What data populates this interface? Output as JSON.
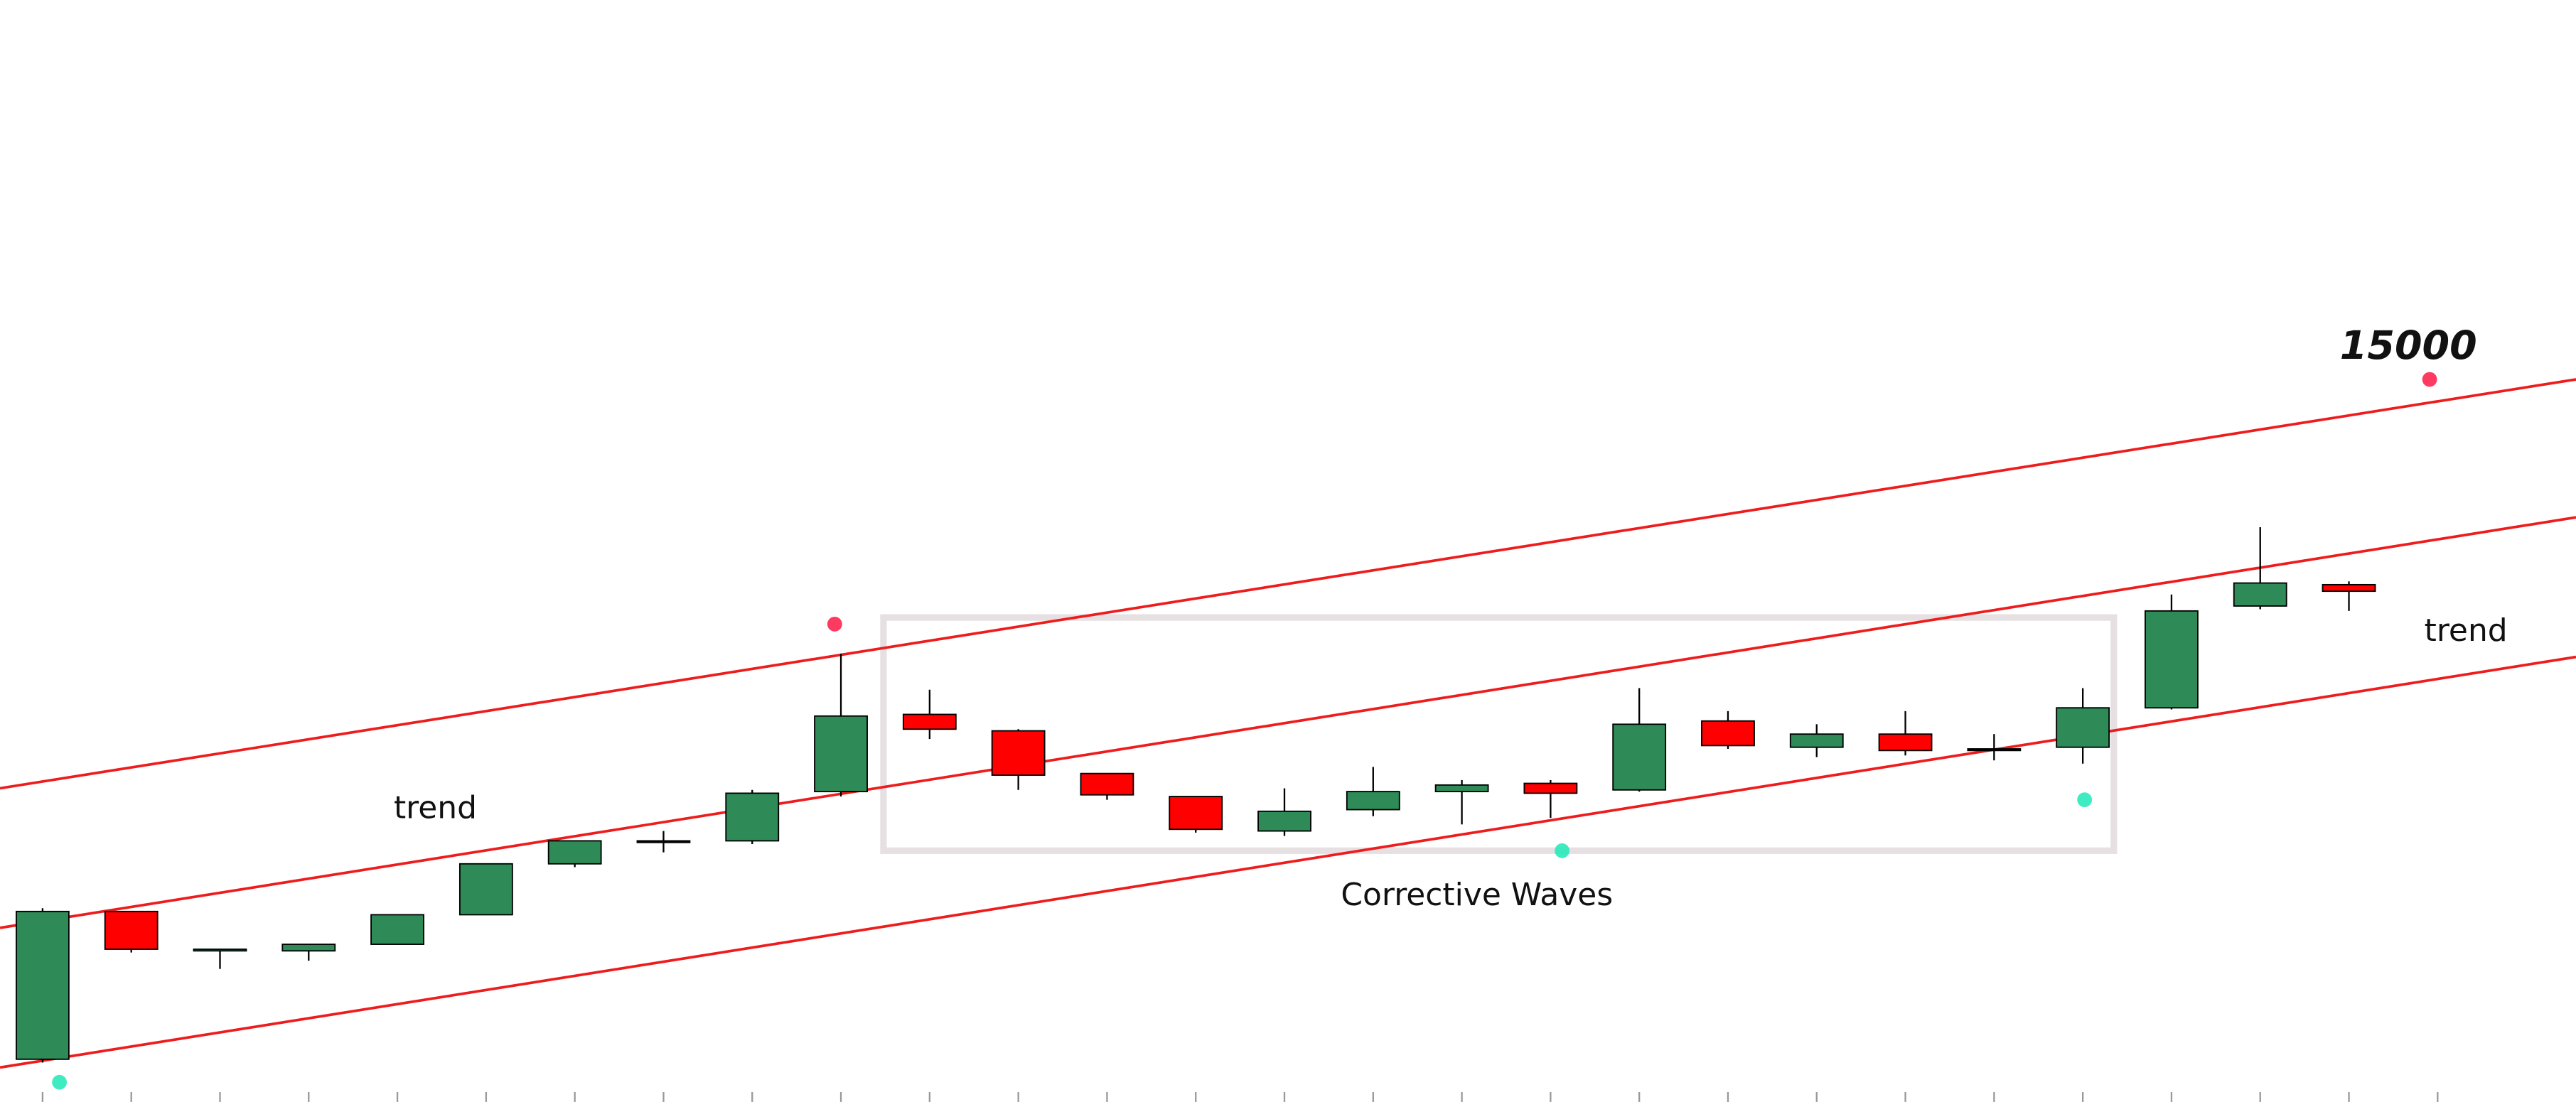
{
  "chart_data": {
    "type": "candlestick",
    "open": [
      26,
      116,
      92,
      92,
      96,
      114,
      145,
      159,
      159,
      189,
      236,
      226,
      200,
      186,
      165,
      178,
      189,
      194,
      190,
      232,
      216,
      224,
      215,
      216,
      240,
      302,
      315
    ],
    "high": [
      118,
      116,
      93,
      96,
      114,
      145,
      159,
      165,
      190,
      273,
      251,
      227,
      200,
      186,
      191,
      204,
      196,
      196,
      252,
      238,
      230,
      238,
      224,
      252,
      309,
      350,
      317
    ],
    "low": [
      24,
      91,
      81,
      86,
      96,
      114,
      143,
      152,
      157,
      186,
      221,
      190,
      184,
      164,
      162,
      174,
      169,
      173,
      189,
      215,
      210,
      211,
      208,
      206,
      239,
      300,
      299
    ],
    "close": [
      116,
      93,
      93,
      96,
      114,
      145,
      159,
      159,
      188,
      235,
      227,
      199,
      187,
      166,
      177,
      189,
      193,
      188,
      230,
      217,
      224,
      214,
      215,
      240,
      299,
      316,
      311
    ],
    "up_color": "#2e8b57",
    "down_color": "#ff0000",
    "xlim": [
      -0.48,
      28.56
    ],
    "ylim": [
      0,
      671
    ],
    "xticks": [
      0,
      1,
      2,
      3,
      4,
      5,
      6,
      7,
      8,
      9,
      10,
      11,
      12,
      13,
      14,
      15,
      16,
      17,
      18,
      19,
      20,
      21,
      22,
      23,
      24,
      25,
      26,
      27
    ],
    "trend_lines": [
      {
        "color": "#ee1c1c",
        "x": [
          -0.48,
          28.56
        ],
        "y": [
          191,
          440
        ]
      },
      {
        "color": "#ee1c1c",
        "x": [
          -0.48,
          28.56
        ],
        "y": [
          106,
          356
        ]
      },
      {
        "color": "#ee1c1c",
        "x": [
          -0.48,
          28.56
        ],
        "y": [
          21,
          271
        ]
      }
    ],
    "dots": [
      {
        "color": "#ff1744",
        "x": 8.93,
        "y": 291
      },
      {
        "color": "#ff1744",
        "x": 26.91,
        "y": 440
      },
      {
        "color": "#1de9b6",
        "x": 0.19,
        "y": 12
      },
      {
        "color": "#1de9b6",
        "x": 17.13,
        "y": 153
      },
      {
        "color": "#1de9b6",
        "x": 23.02,
        "y": 184
      }
    ],
    "box": {
      "x": [
        9.48,
        23.35
      ],
      "y": [
        153,
        295
      ],
      "color": "#e6e0e3"
    },
    "annotations": [
      "15000",
      "trend",
      "trend",
      "Corrective Waves"
    ]
  }
}
